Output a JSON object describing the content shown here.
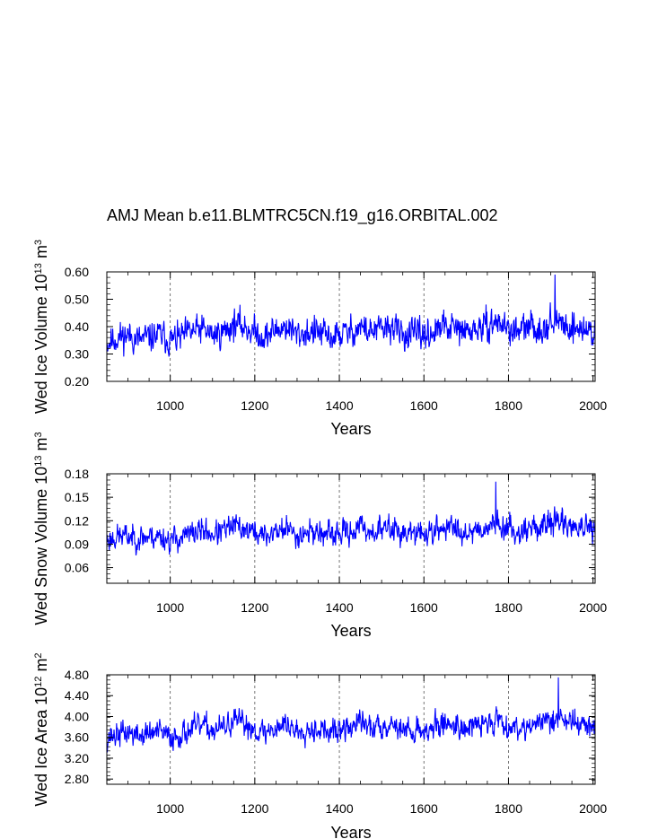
{
  "title": "AMJ Mean b.e11.BLMTRC5CN.f19_g16.ORBITAL.002",
  "colors": {
    "series": "#0000ff",
    "axis": "#000000",
    "grid": "#555555"
  },
  "chart_data": [
    {
      "type": "line",
      "name": "ice-volume",
      "title": "",
      "xlabel": "Years",
      "ylabel_main": "Wed Ice Volume 10",
      "ylabel_sup1": "13",
      "ylabel_mid": " m",
      "ylabel_sup2": "3",
      "xlim": [
        850,
        2005
      ],
      "ylim": [
        0.2,
        0.6
      ],
      "xticks": [
        1000,
        1200,
        1400,
        1600,
        1800,
        2000
      ],
      "xtick_labels": [
        "1000",
        "1200",
        "1400",
        "1600",
        "1800",
        "2000"
      ],
      "yticks": [
        0.2,
        0.3,
        0.4,
        0.5,
        0.6
      ],
      "ytick_labels": [
        "0.20",
        "0.30",
        "0.40",
        "0.50",
        "0.60"
      ],
      "vgrid": [
        1000,
        1200,
        1400,
        1600,
        1800
      ],
      "series": [
        {
          "name": "Wed Ice Volume",
          "x_start": 850,
          "x_end": 2005,
          "samples": 1156,
          "anchors_x": [
            850,
            875,
            900,
            925,
            950,
            975,
            1000,
            1025,
            1050,
            1075,
            1100,
            1125,
            1150,
            1175,
            1200,
            1225,
            1250,
            1275,
            1300,
            1325,
            1350,
            1375,
            1400,
            1425,
            1450,
            1475,
            1500,
            1525,
            1550,
            1575,
            1600,
            1625,
            1650,
            1675,
            1700,
            1725,
            1750,
            1775,
            1800,
            1825,
            1850,
            1875,
            1900,
            1925,
            1950,
            1975,
            2005
          ],
          "anchors_mean": [
            0.34,
            0.36,
            0.37,
            0.35,
            0.36,
            0.37,
            0.35,
            0.36,
            0.38,
            0.39,
            0.37,
            0.38,
            0.41,
            0.4,
            0.38,
            0.36,
            0.39,
            0.4,
            0.37,
            0.38,
            0.38,
            0.36,
            0.37,
            0.38,
            0.4,
            0.38,
            0.39,
            0.4,
            0.37,
            0.37,
            0.37,
            0.38,
            0.4,
            0.39,
            0.38,
            0.39,
            0.4,
            0.42,
            0.39,
            0.38,
            0.4,
            0.39,
            0.42,
            0.41,
            0.4,
            0.39,
            0.38
          ],
          "amplitude": 0.055,
          "seed": 11,
          "min_y": 0.2,
          "peak": [
            1910,
            0.59
          ]
        }
      ]
    },
    {
      "type": "line",
      "name": "snow-volume",
      "title": "",
      "xlabel": "Years",
      "ylabel_main": "Wed Snow Volume 10",
      "ylabel_sup1": "13",
      "ylabel_mid": " m",
      "ylabel_sup2": "3",
      "xlim": [
        850,
        2005
      ],
      "ylim": [
        0.04,
        0.18
      ],
      "xticks": [
        1000,
        1200,
        1400,
        1600,
        1800,
        2000
      ],
      "xtick_labels": [
        "1000",
        "1200",
        "1400",
        "1600",
        "1800",
        "2000"
      ],
      "yticks": [
        0.06,
        0.09,
        0.12,
        0.15,
        0.18
      ],
      "ytick_labels": [
        "0.06",
        "0.09",
        "0.12",
        "0.15",
        "0.18"
      ],
      "vgrid": [
        1000,
        1200,
        1400,
        1600,
        1800
      ],
      "series": [
        {
          "name": "Wed Snow Volume",
          "x_start": 850,
          "x_end": 2005,
          "samples": 1156,
          "anchors_x": [
            850,
            875,
            900,
            925,
            950,
            975,
            1000,
            1025,
            1050,
            1075,
            1100,
            1125,
            1150,
            1175,
            1200,
            1225,
            1250,
            1275,
            1300,
            1325,
            1350,
            1375,
            1400,
            1425,
            1450,
            1475,
            1500,
            1525,
            1550,
            1575,
            1600,
            1625,
            1650,
            1675,
            1700,
            1725,
            1750,
            1775,
            1800,
            1825,
            1850,
            1875,
            1900,
            1925,
            1950,
            1975,
            2005
          ],
          "anchors_mean": [
            0.095,
            0.1,
            0.1,
            0.098,
            0.1,
            0.1,
            0.095,
            0.098,
            0.103,
            0.108,
            0.103,
            0.106,
            0.113,
            0.11,
            0.105,
            0.1,
            0.107,
            0.11,
            0.102,
            0.106,
            0.106,
            0.1,
            0.103,
            0.106,
            0.112,
            0.106,
            0.108,
            0.112,
            0.104,
            0.103,
            0.104,
            0.106,
            0.112,
            0.11,
            0.106,
            0.109,
            0.112,
            0.118,
            0.109,
            0.106,
            0.112,
            0.11,
            0.12,
            0.118,
            0.114,
            0.11,
            0.105
          ],
          "amplitude": 0.016,
          "seed": 23,
          "min_y": 0.05,
          "peak": [
            1770,
            0.17
          ]
        }
      ]
    },
    {
      "type": "line",
      "name": "ice-area",
      "title": "",
      "xlabel": "Years",
      "ylabel_main": "Wed Ice Area 10",
      "ylabel_sup1": "12",
      "ylabel_mid": " m",
      "ylabel_sup2": "2",
      "xlim": [
        850,
        2005
      ],
      "ylim": [
        2.7,
        4.8
      ],
      "xticks": [
        1000,
        1200,
        1400,
        1600,
        1800,
        2000
      ],
      "xtick_labels": [
        "1000",
        "1200",
        "1400",
        "1600",
        "1800",
        "2000"
      ],
      "yticks": [
        2.8,
        3.2,
        3.6,
        4.0,
        4.4,
        4.8
      ],
      "ytick_labels": [
        "2.80",
        "3.20",
        "3.60",
        "4.00",
        "4.40",
        "4.80"
      ],
      "vgrid": [
        1000,
        1200,
        1400,
        1600,
        1800
      ],
      "series": [
        {
          "name": "Wed Ice Area",
          "x_start": 850,
          "x_end": 2005,
          "samples": 1156,
          "anchors_x": [
            850,
            875,
            900,
            925,
            950,
            975,
            1000,
            1025,
            1050,
            1075,
            1100,
            1125,
            1150,
            1175,
            1200,
            1225,
            1250,
            1275,
            1300,
            1325,
            1350,
            1375,
            1400,
            1425,
            1450,
            1475,
            1500,
            1525,
            1550,
            1575,
            1600,
            1625,
            1650,
            1675,
            1700,
            1725,
            1750,
            1775,
            1800,
            1825,
            1850,
            1875,
            1900,
            1925,
            1950,
            1975,
            2005
          ],
          "anchors_mean": [
            3.6,
            3.65,
            3.7,
            3.62,
            3.68,
            3.7,
            3.6,
            3.66,
            3.75,
            3.82,
            3.74,
            3.78,
            3.9,
            3.86,
            3.76,
            3.68,
            3.8,
            3.86,
            3.72,
            3.78,
            3.78,
            3.68,
            3.73,
            3.78,
            3.9,
            3.78,
            3.82,
            3.88,
            3.74,
            3.73,
            3.74,
            3.78,
            3.88,
            3.84,
            3.78,
            3.82,
            3.88,
            3.96,
            3.82,
            3.78,
            3.86,
            3.84,
            3.98,
            3.95,
            3.9,
            3.84,
            3.78
          ],
          "amplitude": 0.24,
          "seed": 37,
          "min_y": 2.75,
          "peak": [
            1918,
            4.75
          ]
        }
      ]
    }
  ]
}
